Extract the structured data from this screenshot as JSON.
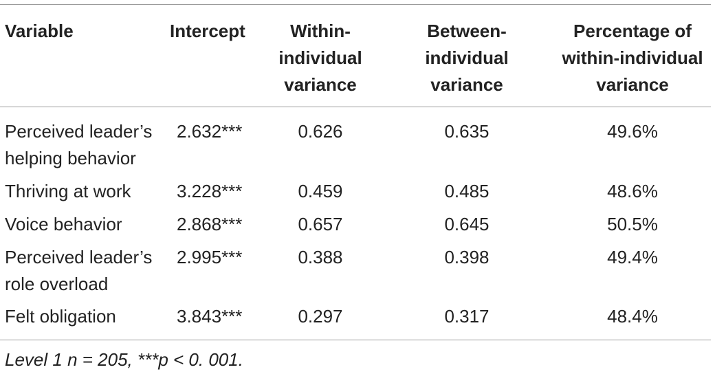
{
  "table": {
    "headers": {
      "variable": "Variable",
      "intercept": "Intercept",
      "within_l1": "Within-",
      "within_l2": "individual",
      "within_l3": "variance",
      "between_l1": "Between-",
      "between_l2": "individual",
      "between_l3": "variance",
      "pct_l1": "Percentage of",
      "pct_l2": "within-individual",
      "pct_l3": "variance"
    },
    "rows": [
      {
        "variable_l1": "Perceived leader’s",
        "variable_l2": "helping behavior",
        "intercept": "2.632***",
        "within": "0.626",
        "between": "0.635",
        "percentage": "49.6%"
      },
      {
        "variable_l1": "Thriving at work",
        "variable_l2": "",
        "intercept": "3.228***",
        "within": "0.459",
        "between": "0.485",
        "percentage": "48.6%"
      },
      {
        "variable_l1": "Voice behavior",
        "variable_l2": "",
        "intercept": "2.868***",
        "within": "0.657",
        "between": "0.645",
        "percentage": "50.5%"
      },
      {
        "variable_l1": "Perceived leader’s",
        "variable_l2": "role overload",
        "intercept": "2.995***",
        "within": "0.388",
        "between": "0.398",
        "percentage": "49.4%"
      },
      {
        "variable_l1": "Felt obligation",
        "variable_l2": "",
        "intercept": "3.843***",
        "within": "0.297",
        "between": "0.317",
        "percentage": "48.4%"
      }
    ],
    "note": "Level 1 n = 205, ***p < 0. 001."
  }
}
